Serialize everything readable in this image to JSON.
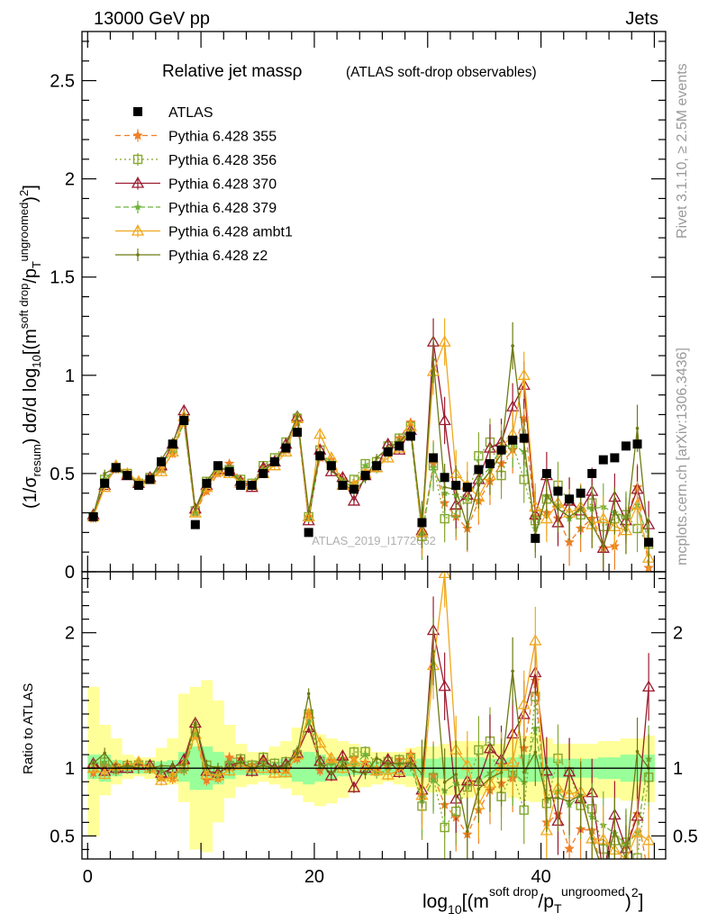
{
  "header": {
    "left": "13000 GeV pp",
    "right": "Jets"
  },
  "side_text": {
    "rivet": "Rivet 3.1.10, ≥ 2.5M events",
    "mcplots": "mcplots.cern.ch [arXiv:1306.3436]"
  },
  "watermark": "ATLAS_2019_I1772062",
  "colors": {
    "ATLAS": "#000000",
    "p355": "#f07f26",
    "p356": "#86a82e",
    "p370": "#9b1b30",
    "p379": "#6fb23b",
    "ambt1": "#f0a81e",
    "z2": "#6e7a12",
    "band_outer": "#ffff99",
    "band_inner": "#99ff99"
  },
  "chart_data": [
    {
      "type": "line",
      "panel": "main",
      "title": "Relative jet massρ",
      "subtitle": "(ATLAS soft-drop observables)",
      "ylabel": "(1/σresum) dσ/d log10[(m soft drop/pT ungroomed)2]",
      "xlim": [
        -0.5,
        51
      ],
      "ylim": [
        0,
        2.75
      ],
      "yticks": [
        "0",
        "0.5",
        "1",
        "1.5",
        "2",
        "2.5"
      ],
      "legend_position": "top-left",
      "legend": [
        "ATLAS",
        "Pythia 6.428 355",
        "Pythia 6.428 356",
        "Pythia 6.428 370",
        "Pythia 6.428 379",
        "Pythia 6.428 ambt1",
        "Pythia 6.428 z2"
      ],
      "x": [
        0.5,
        1.5,
        2.5,
        3.5,
        4.5,
        5.5,
        6.5,
        7.5,
        8.5,
        9.5,
        10.5,
        11.5,
        12.5,
        13.5,
        14.5,
        15.5,
        16.5,
        17.5,
        18.5,
        19.5,
        20.5,
        21.5,
        22.5,
        23.5,
        24.5,
        25.5,
        26.5,
        27.5,
        28.5,
        29.5,
        30.5,
        31.5,
        32.5,
        33.5,
        34.5,
        35.5,
        36.5,
        37.5,
        38.5,
        39.5,
        40.5,
        41.5,
        42.5,
        43.5,
        44.5,
        45.5,
        46.5,
        47.5,
        48.5,
        49.5
      ],
      "series": [
        {
          "name": "ATLAS",
          "key": "ATLAS",
          "marker": "square",
          "dash": "",
          "values": [
            0.28,
            0.45,
            0.53,
            0.49,
            0.44,
            0.47,
            0.56,
            0.65,
            0.77,
            0.24,
            0.45,
            0.54,
            0.51,
            0.44,
            0.44,
            0.5,
            0.56,
            0.63,
            0.71,
            0.2,
            0.59,
            0.54,
            0.44,
            0.42,
            0.49,
            0.54,
            0.61,
            0.64,
            0.69,
            0.25,
            0.58,
            0.48,
            0.44,
            0.43,
            0.52,
            0.55,
            0.62,
            0.67,
            0.68,
            0.17,
            0.5,
            0.41,
            0.37,
            0.4,
            0.5,
            0.57,
            0.58,
            0.64,
            0.65,
            0.15
          ]
        },
        {
          "name": "Pythia 6.428 355",
          "key": "p355",
          "marker": "star",
          "dash": "6,4",
          "values": [
            0.27,
            0.46,
            0.52,
            0.5,
            0.46,
            0.47,
            0.52,
            0.6,
            0.76,
            0.3,
            0.41,
            0.5,
            0.55,
            0.47,
            0.45,
            0.53,
            0.56,
            0.62,
            0.76,
            0.28,
            0.58,
            0.57,
            0.47,
            0.45,
            0.51,
            0.53,
            0.62,
            0.68,
            0.76,
            0.2,
            0.55,
            0.35,
            0.28,
            0.22,
            0.36,
            0.46,
            0.55,
            0.62,
            0.78,
            0.28,
            0.3,
            0.27,
            0.15,
            0.22,
            0.27,
            0.12,
            0.13,
            0.28,
            0.43,
            0.02
          ]
        },
        {
          "name": "Pythia 6.428 356",
          "key": "p356",
          "marker": "square-open",
          "dash": "2,3",
          "values": [
            0.28,
            0.47,
            0.53,
            0.5,
            0.45,
            0.48,
            0.53,
            0.63,
            0.78,
            0.31,
            0.46,
            0.53,
            0.52,
            0.47,
            0.45,
            0.54,
            0.58,
            0.66,
            0.78,
            0.28,
            0.62,
            0.54,
            0.45,
            0.47,
            0.55,
            0.56,
            0.64,
            0.68,
            0.74,
            0.18,
            0.54,
            0.27,
            0.3,
            0.37,
            0.59,
            0.66,
            0.49,
            0.65,
            0.47,
            0.26,
            0.37,
            0.44,
            0.36,
            0.29,
            0.35,
            0.23,
            0.27,
            0.29,
            0.22,
            0.14
          ]
        },
        {
          "name": "Pythia 6.428 370",
          "key": "p370",
          "marker": "triangle-open",
          "dash": "",
          "values": [
            0.29,
            0.44,
            0.53,
            0.49,
            0.45,
            0.48,
            0.54,
            0.65,
            0.82,
            0.32,
            0.44,
            0.52,
            0.52,
            0.46,
            0.43,
            0.53,
            0.56,
            0.65,
            0.79,
            0.26,
            0.62,
            0.51,
            0.48,
            0.36,
            0.49,
            0.53,
            0.65,
            0.62,
            0.72,
            0.21,
            1.17,
            0.77,
            0.34,
            0.39,
            0.47,
            0.63,
            0.66,
            0.84,
            0.95,
            0.29,
            0.49,
            0.25,
            0.36,
            0.31,
            0.41,
            0.12,
            0.38,
            0.26,
            0.42,
            0.24
          ]
        },
        {
          "name": "Pythia 6.428 379",
          "key": "p379",
          "marker": "star-small",
          "dash": "6,3",
          "values": [
            0.29,
            0.47,
            0.52,
            0.49,
            0.46,
            0.47,
            0.55,
            0.62,
            0.76,
            0.3,
            0.44,
            0.51,
            0.53,
            0.46,
            0.44,
            0.52,
            0.56,
            0.64,
            0.8,
            0.27,
            0.6,
            0.56,
            0.46,
            0.43,
            0.54,
            0.52,
            0.6,
            0.66,
            0.7,
            0.19,
            0.53,
            0.4,
            0.39,
            0.37,
            0.47,
            0.53,
            0.63,
            0.65,
            0.61,
            0.22,
            0.38,
            0.34,
            0.27,
            0.32,
            0.32,
            0.33,
            0.3,
            0.28,
            0.34,
            0.16
          ]
        },
        {
          "name": "Pythia 6.428 ambt1",
          "key": "ambt1",
          "marker": "triangle-open",
          "dash": "",
          "values": [
            0.28,
            0.43,
            0.54,
            0.5,
            0.46,
            0.47,
            0.51,
            0.61,
            0.79,
            0.3,
            0.43,
            0.51,
            0.5,
            0.45,
            0.44,
            0.5,
            0.54,
            0.61,
            0.78,
            0.28,
            0.7,
            0.58,
            0.44,
            0.44,
            0.5,
            0.53,
            0.58,
            0.63,
            0.74,
            0.2,
            1.02,
            1.17,
            0.5,
            0.44,
            0.38,
            0.49,
            0.63,
            0.7,
            1.0,
            0.33,
            0.27,
            0.35,
            0.3,
            0.33,
            0.24,
            0.27,
            0.23,
            0.21,
            0.34,
            0.07
          ]
        },
        {
          "name": "Pythia 6.428 z2",
          "key": "z2",
          "marker": "dot",
          "dash": "",
          "values": [
            0.29,
            0.5,
            0.53,
            0.5,
            0.44,
            0.47,
            0.57,
            0.66,
            0.79,
            0.32,
            0.46,
            0.54,
            0.51,
            0.46,
            0.44,
            0.51,
            0.56,
            0.64,
            0.79,
            0.31,
            0.61,
            0.52,
            0.45,
            0.41,
            0.47,
            0.58,
            0.63,
            0.66,
            0.72,
            0.24,
            1.08,
            0.43,
            0.42,
            0.23,
            0.44,
            0.51,
            0.6,
            1.15,
            0.66,
            0.19,
            0.39,
            0.32,
            0.28,
            0.32,
            0.24,
            0.13,
            0.31,
            0.21,
            0.73,
            0.15
          ]
        }
      ]
    },
    {
      "type": "line",
      "panel": "ratio",
      "ylabel": "Ratio to ATLAS",
      "xlabel": "log10[(m soft drop/pT ungroomed)2]",
      "xlim": [
        -0.5,
        51
      ],
      "ylim": [
        0.33,
        2.45
      ],
      "yticks": [
        "0.5",
        "1",
        "2"
      ],
      "xticks": [
        "0",
        "20",
        "40"
      ],
      "reference": 1,
      "band_outer": [
        [
          0.5,
          1.6
        ],
        [
          0.8,
          1.32
        ],
        [
          0.88,
          1.22
        ],
        [
          0.92,
          1.1
        ],
        [
          0.94,
          1.08
        ],
        [
          0.92,
          1.08
        ],
        [
          0.9,
          1.15
        ],
        [
          0.88,
          1.22
        ],
        [
          0.75,
          1.55
        ],
        [
          0.4,
          1.6
        ],
        [
          0.38,
          1.65
        ],
        [
          0.6,
          1.5
        ],
        [
          0.78,
          1.32
        ],
        [
          0.86,
          1.18
        ],
        [
          0.88,
          1.12
        ],
        [
          0.9,
          1.12
        ],
        [
          0.88,
          1.16
        ],
        [
          0.85,
          1.2
        ],
        [
          0.8,
          1.3
        ],
        [
          0.75,
          1.35
        ],
        [
          0.72,
          1.25
        ],
        [
          0.74,
          1.22
        ],
        [
          0.78,
          1.2
        ],
        [
          0.82,
          1.18
        ],
        [
          0.86,
          1.15
        ],
        [
          0.88,
          1.12
        ],
        [
          0.9,
          1.12
        ],
        [
          0.88,
          1.12
        ],
        [
          0.86,
          1.15
        ],
        [
          0.84,
          1.16
        ],
        [
          0.82,
          1.16
        ],
        [
          0.8,
          1.18
        ],
        [
          0.8,
          1.2
        ],
        [
          0.78,
          1.2
        ],
        [
          0.8,
          1.2
        ],
        [
          0.82,
          1.18
        ],
        [
          0.82,
          1.18
        ],
        [
          0.78,
          1.22
        ],
        [
          0.76,
          1.24
        ],
        [
          0.75,
          1.26
        ],
        [
          0.78,
          1.22
        ],
        [
          0.8,
          1.18
        ],
        [
          0.8,
          1.18
        ],
        [
          0.8,
          1.18
        ],
        [
          0.8,
          1.18
        ],
        [
          0.78,
          1.2
        ],
        [
          0.78,
          1.2
        ],
        [
          0.76,
          1.22
        ],
        [
          0.76,
          1.22
        ],
        [
          0.75,
          1.24
        ]
      ],
      "band_inner": [
        [
          0.92,
          1.1
        ],
        [
          0.9,
          1.1
        ],
        [
          0.94,
          1.06
        ],
        [
          0.96,
          1.04
        ],
        [
          0.96,
          1.04
        ],
        [
          0.96,
          1.04
        ],
        [
          0.95,
          1.05
        ],
        [
          0.94,
          1.06
        ],
        [
          0.9,
          1.12
        ],
        [
          0.84,
          1.16
        ],
        [
          0.84,
          1.16
        ],
        [
          0.88,
          1.12
        ],
        [
          0.92,
          1.08
        ],
        [
          0.95,
          1.05
        ],
        [
          0.95,
          1.05
        ],
        [
          0.95,
          1.05
        ],
        [
          0.95,
          1.05
        ],
        [
          0.93,
          1.07
        ],
        [
          0.9,
          1.1
        ],
        [
          0.88,
          1.12
        ],
        [
          0.9,
          1.1
        ],
        [
          0.92,
          1.08
        ],
        [
          0.94,
          1.06
        ],
        [
          0.95,
          1.05
        ],
        [
          0.95,
          1.05
        ],
        [
          0.95,
          1.05
        ],
        [
          0.95,
          1.05
        ],
        [
          0.95,
          1.05
        ],
        [
          0.94,
          1.06
        ],
        [
          0.93,
          1.07
        ],
        [
          0.93,
          1.07
        ],
        [
          0.92,
          1.08
        ],
        [
          0.92,
          1.08
        ],
        [
          0.92,
          1.08
        ],
        [
          0.92,
          1.08
        ],
        [
          0.93,
          1.07
        ],
        [
          0.93,
          1.07
        ],
        [
          0.92,
          1.08
        ],
        [
          0.9,
          1.1
        ],
        [
          0.9,
          1.1
        ],
        [
          0.92,
          1.08
        ],
        [
          0.93,
          1.07
        ],
        [
          0.93,
          1.07
        ],
        [
          0.93,
          1.07
        ],
        [
          0.93,
          1.07
        ],
        [
          0.92,
          1.08
        ],
        [
          0.92,
          1.08
        ],
        [
          0.9,
          1.1
        ],
        [
          0.9,
          1.1
        ],
        [
          0.9,
          1.1
        ]
      ]
    }
  ]
}
